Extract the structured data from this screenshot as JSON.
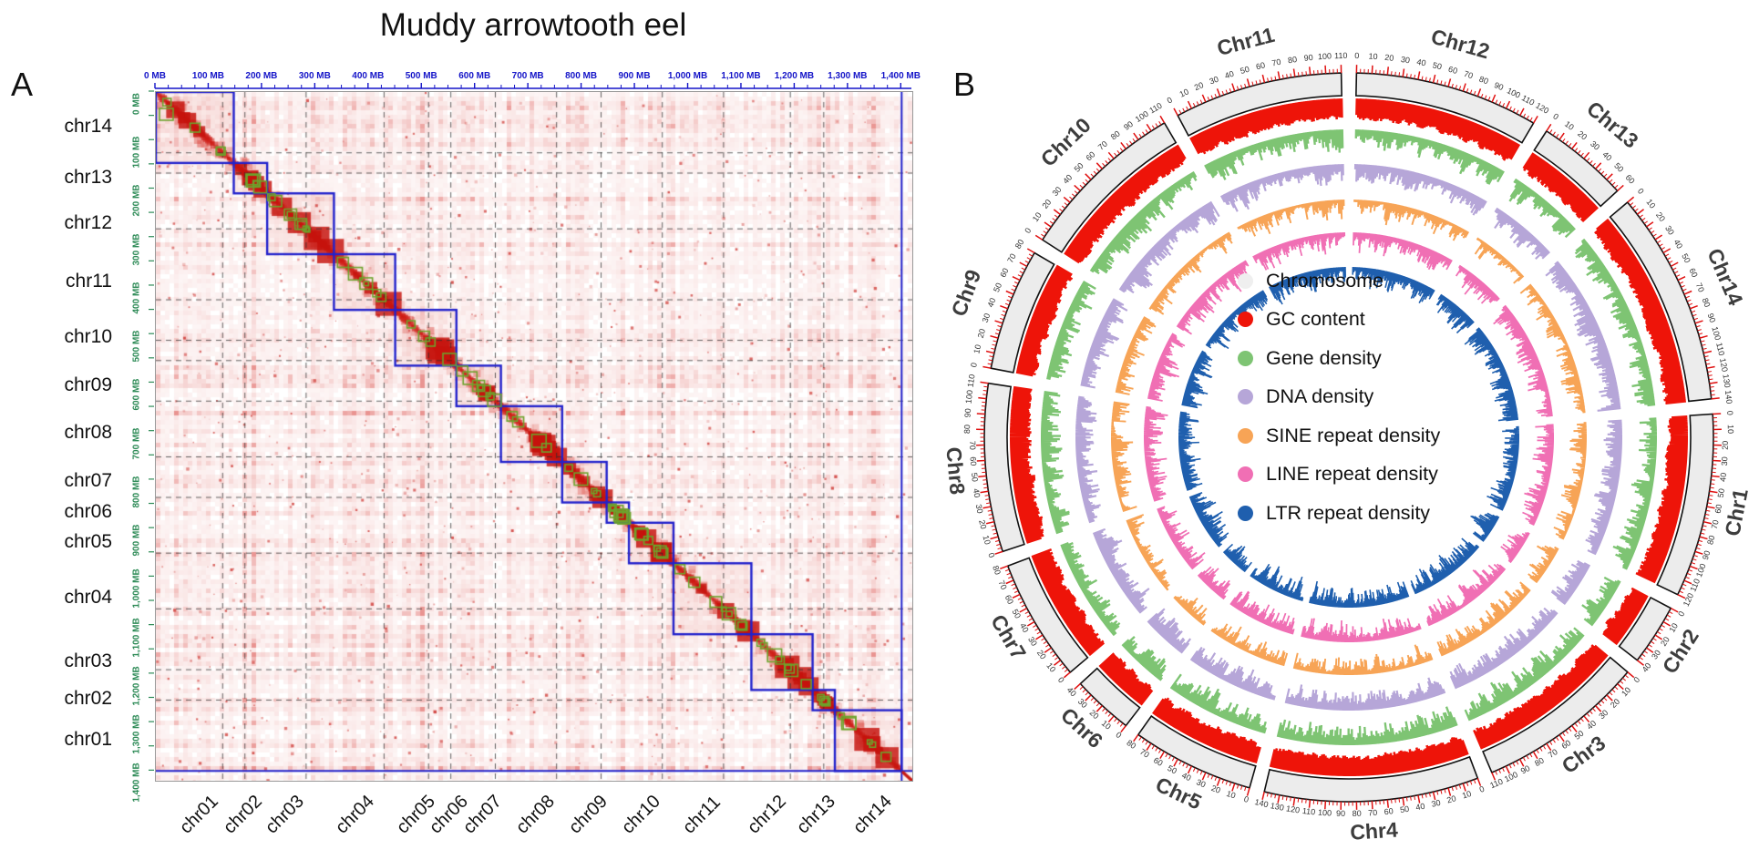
{
  "figure_title": "Muddy arrowtooth eel",
  "panel_a": {
    "label": "A",
    "title": "Muddy arrowtooth eel",
    "axis_tick_labels": [
      "0 MB",
      "100 MB",
      "200 MB",
      "300 MB",
      "400 MB",
      "500 MB",
      "600 MB",
      "700 MB",
      "800 MB",
      "900 MB",
      "1,000 MB",
      "1,100 MB",
      "1,200 MB",
      "1,300 MB",
      "1,400 MB"
    ],
    "axis_tick_mb": [
      0,
      100,
      200,
      300,
      400,
      500,
      600,
      700,
      800,
      900,
      1000,
      1100,
      1200,
      1300,
      1400
    ],
    "row_labels_top_to_bottom": [
      "chr14",
      "chr13",
      "chr12",
      "chr11",
      "chr10",
      "chr09",
      "chr08",
      "chr07",
      "chr06",
      "chr05",
      "chr04",
      "chr03",
      "chr02",
      "chr01"
    ],
    "col_labels_left_to_right": [
      "chr01",
      "chr02",
      "chr03",
      "chr04",
      "chr05",
      "chr06",
      "chr07",
      "chr08",
      "chr09",
      "chr10",
      "chr11",
      "chr12",
      "chr13",
      "chr14"
    ],
    "chr_sizes_mb": {
      "chr01": 120,
      "chr02": 40,
      "chr03": 110,
      "chr04": 140,
      "chr05": 80,
      "chr06": 40,
      "chr07": 80,
      "chr08": 110,
      "chr09": 80,
      "chr10": 110,
      "chr11": 110,
      "chr12": 120,
      "chr13": 60,
      "chr14": 140
    },
    "colors": {
      "top_axis": "#1414c8",
      "left_axis": "#2e8b57",
      "heat": "#d7322f",
      "box": "#2222cc",
      "subscaffold": "#6da32c",
      "dashed_grid": "#3c3c3c"
    },
    "noise_seed": 12345
  },
  "panel_b": {
    "label": "B",
    "order_clockwise_from_top": [
      "Chr12",
      "Chr13",
      "Chr14",
      "Chr1",
      "Chr2",
      "Chr3",
      "Chr4",
      "Chr5",
      "Chr6",
      "Chr7",
      "Chr8",
      "Chr9",
      "Chr10",
      "Chr11"
    ],
    "chr_lengths_mb": {
      "Chr1": 120,
      "Chr2": 40,
      "Chr3": 110,
      "Chr4": 140,
      "Chr5": 80,
      "Chr6": 40,
      "Chr7": 80,
      "Chr8": 110,
      "Chr9": 80,
      "Chr10": 110,
      "Chr11": 110,
      "Chr12": 120,
      "Chr13": 60,
      "Chr14": 140
    },
    "axis": {
      "major_tick_mb": 10,
      "minor_tick_mb": 2.5,
      "tick_color": "#e01010",
      "tick_label_color": "#333333",
      "ideogram_fill": "#ececec",
      "ideogram_stroke": "#111111",
      "name_color": "#3d3d3d"
    },
    "tracks": [
      {
        "name": "GC content",
        "color": "#ee1409",
        "base": 0.62,
        "amp": 0.33,
        "pow": 1.0
      },
      {
        "name": "Gene density",
        "color": "#7ec473",
        "base": 0.13,
        "amp": 0.8,
        "pow": 2.2
      },
      {
        "name": "DNA density",
        "color": "#b6a6d8",
        "base": 0.15,
        "amp": 0.75,
        "pow": 2.0
      },
      {
        "name": "SINE repeat density",
        "color": "#f7a456",
        "base": 0.08,
        "amp": 0.85,
        "pow": 3.2
      },
      {
        "name": "LINE repeat density",
        "color": "#f06fb4",
        "base": 0.1,
        "amp": 0.85,
        "pow": 2.6
      },
      {
        "name": "LTR repeat density",
        "color": "#1f5fae",
        "base": 0.1,
        "amp": 0.85,
        "pow": 2.4
      }
    ],
    "legend": [
      {
        "label": "Chromosome",
        "color": "#efefef"
      },
      {
        "label": "GC content",
        "color": "#ee1409"
      },
      {
        "label": "Gene density",
        "color": "#7ec473"
      },
      {
        "label": "DNA density",
        "color": "#b6a6d8"
      },
      {
        "label": "SINE repeat density",
        "color": "#f7a456"
      },
      {
        "label": "LINE repeat density",
        "color": "#f06fb4"
      },
      {
        "label": "LTR repeat density",
        "color": "#1f5fae"
      }
    ],
    "noise_seed": 777
  },
  "chart_data": [
    {
      "type": "heatmap",
      "title": "Muddy arrowtooth eel",
      "description": "Whole-genome Hi-C contact map; intra-chromosomal blocks outlined in blue along the diagonal, superscaffold boundaries as small green squares",
      "rows_top_to_bottom": [
        "chr14",
        "chr13",
        "chr12",
        "chr11",
        "chr10",
        "chr09",
        "chr08",
        "chr07",
        "chr06",
        "chr05",
        "chr04",
        "chr03",
        "chr02",
        "chr01"
      ],
      "columns_left_to_right": [
        "chr01",
        "chr02",
        "chr03",
        "chr04",
        "chr05",
        "chr06",
        "chr07",
        "chr08",
        "chr09",
        "chr10",
        "chr11",
        "chr12",
        "chr13",
        "chr14"
      ],
      "chromosome_sizes_mb": [
        120,
        40,
        110,
        140,
        80,
        40,
        80,
        110,
        80,
        110,
        110,
        120,
        60,
        140
      ],
      "x_axis": {
        "label_unit": "MB",
        "range_mb": [
          0,
          1400
        ],
        "major_tick_mb": 100
      },
      "y_axis": {
        "label_unit": "MB",
        "range_mb": [
          0,
          1400
        ],
        "major_tick_mb": 100
      }
    },
    {
      "type": "bar",
      "layout": "circular",
      "description": "Circos plot; outer-to-inner tracks: chromosome ideogram with MB ruler, then six inward-pointing histogram tracks",
      "categories": [
        "Chr1",
        "Chr2",
        "Chr3",
        "Chr4",
        "Chr5",
        "Chr6",
        "Chr7",
        "Chr8",
        "Chr9",
        "Chr10",
        "Chr11",
        "Chr12",
        "Chr13",
        "Chr14"
      ],
      "values_chr_length_mb": [
        120,
        40,
        110,
        140,
        80,
        40,
        80,
        110,
        80,
        110,
        110,
        120,
        60,
        140
      ],
      "series": [
        {
          "name": "GC content",
          "summary": "high, nearly constant band"
        },
        {
          "name": "Gene density",
          "summary": "spiky histogram"
        },
        {
          "name": "DNA density",
          "summary": "spiky histogram"
        },
        {
          "name": "SINE repeat density",
          "summary": "sparse spiky histogram"
        },
        {
          "name": "LINE repeat density",
          "summary": "spiky histogram"
        },
        {
          "name": "LTR repeat density",
          "summary": "spiky histogram"
        }
      ],
      "legend_position": "center",
      "ruler_major_tick_mb": 10
    }
  ]
}
